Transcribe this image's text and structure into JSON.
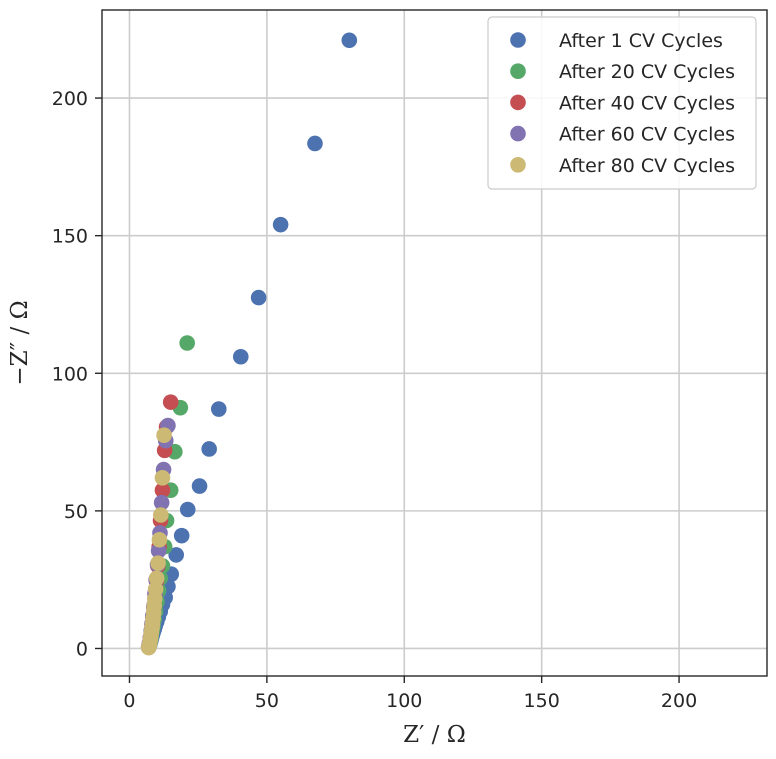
{
  "chart_data": {
    "type": "scatter",
    "title": "",
    "xlabel": "Z′ / Ω",
    "ylabel": "−Z″ / Ω",
    "xlim": [
      -10,
      232
    ],
    "ylim": [
      -10,
      232
    ],
    "xticks": [
      0,
      50,
      100,
      150,
      200
    ],
    "yticks": [
      0,
      50,
      100,
      150,
      200
    ],
    "grid": true,
    "legend_position": "top-right",
    "series": [
      {
        "name": "After 1 CV Cycles",
        "color": "#4c72b0",
        "x": [
          7.0,
          7.2,
          7.4,
          7.6,
          7.8,
          8.0,
          8.3,
          8.6,
          9.0,
          9.4,
          9.9,
          10.5,
          11.2,
          12.0,
          13.0,
          14.0,
          15.2,
          17.0,
          19.0,
          21.2,
          25.5,
          29.0,
          32.5,
          40.5,
          47.0,
          55.0,
          67.5,
          80.0
        ],
        "y": [
          0.5,
          1.0,
          1.5,
          2.2,
          3.0,
          3.8,
          4.8,
          5.8,
          7.0,
          8.3,
          9.7,
          11.5,
          13.5,
          16.0,
          18.5,
          22.5,
          27.0,
          34.0,
          41.0,
          50.5,
          59.0,
          72.5,
          87.0,
          106.0,
          127.5,
          154.0,
          183.5,
          221.0
        ]
      },
      {
        "name": "After 20 CV Cycles",
        "color": "#55a868",
        "x": [
          7.0,
          7.3,
          7.6,
          7.9,
          8.2,
          8.6,
          9.0,
          9.5,
          10.0,
          10.6,
          11.2,
          12.0,
          12.8,
          13.5,
          15.0,
          16.5,
          18.5,
          21.0
        ],
        "y": [
          0.5,
          1.5,
          2.8,
          4.2,
          6.0,
          8.0,
          10.5,
          13.5,
          17.0,
          21.0,
          25.5,
          30.0,
          37.0,
          46.5,
          57.5,
          71.5,
          87.5,
          111.0
        ]
      },
      {
        "name": "After 40 CV Cycles",
        "color": "#c44e52",
        "x": [
          7.0,
          7.3,
          7.6,
          7.9,
          8.2,
          8.5,
          8.9,
          9.3,
          9.8,
          10.3,
          10.8,
          11.3,
          12.0,
          12.8,
          13.5,
          15.0
        ],
        "y": [
          0.5,
          2.0,
          3.8,
          6.0,
          8.5,
          11.5,
          15.0,
          19.5,
          24.5,
          30.0,
          37.0,
          46.5,
          57.5,
          72.0,
          80.5,
          89.5
        ]
      },
      {
        "name": "After 60 CV Cycles",
        "color": "#8172b2",
        "x": [
          7.0,
          7.3,
          7.6,
          7.9,
          8.2,
          8.5,
          8.9,
          9.3,
          9.7,
          10.2,
          10.6,
          11.1,
          11.7,
          12.4,
          13.2,
          14.0
        ],
        "y": [
          0.5,
          2.0,
          4.0,
          6.5,
          9.0,
          12.0,
          15.5,
          20.0,
          25.0,
          30.5,
          35.5,
          42.0,
          53.0,
          65.0,
          75.5,
          81.0
        ]
      },
      {
        "name": "After 80 CV Cycles",
        "color": "#ccb974",
        "x": [
          7.0,
          7.2,
          7.4,
          7.6,
          7.8,
          8.0,
          8.2,
          8.4,
          8.6,
          8.8,
          9.0,
          9.2,
          9.5,
          9.9,
          10.4,
          10.9,
          11.4,
          12.0,
          12.6
        ],
        "y": [
          0.3,
          1.0,
          2.0,
          3.2,
          4.5,
          6.0,
          7.5,
          9.0,
          11.0,
          13.0,
          15.5,
          18.0,
          21.5,
          25.5,
          31.0,
          39.5,
          48.5,
          62.0,
          77.5
        ]
      }
    ]
  }
}
